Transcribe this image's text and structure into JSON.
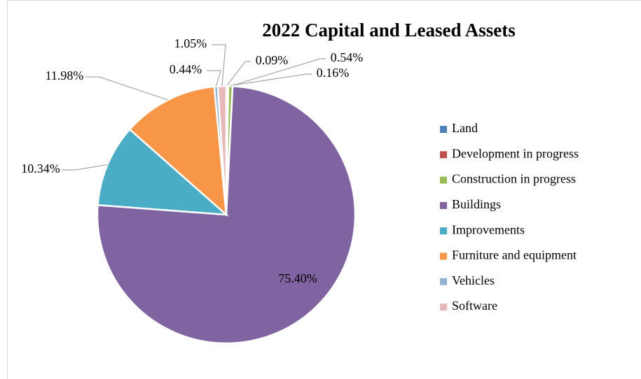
{
  "chart_data": {
    "type": "pie",
    "title": "2022 Capital and Leased Assets",
    "categories": [
      "Land",
      "Development in progress",
      "Construction in progress",
      "Buildings",
      "Improvements",
      "Furniture and equipment",
      "Vehicles",
      "Software"
    ],
    "values": [
      0.09,
      0.16,
      0.54,
      75.4,
      10.34,
      11.98,
      0.44,
      1.05
    ],
    "value_labels": [
      "0.09%",
      "0.16%",
      "0.54%",
      "75.40%",
      "10.34%",
      "11.98%",
      "0.44%",
      "1.05%"
    ],
    "colors": [
      "#4f81bd",
      "#c0504d",
      "#9bbb59",
      "#8064a2",
      "#4bacc6",
      "#f79646",
      "#95b3d7",
      "#e6b9b8"
    ],
    "legend": "right"
  }
}
